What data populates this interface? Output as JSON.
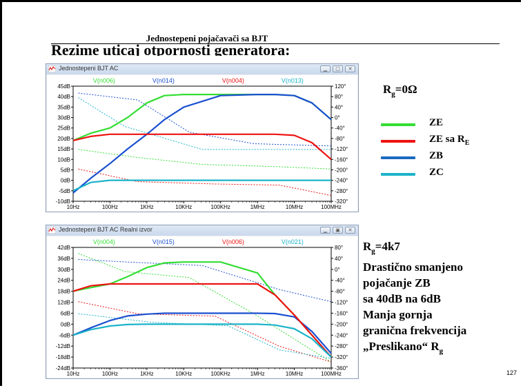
{
  "slide": {
    "title": "Jednostepeni pojačavači sa BJT",
    "heading": "Rezime uticaj otpornosti generatora:",
    "page_number": "127"
  },
  "colors": {
    "ze": "#33dd33",
    "ze_re": "#ee1111",
    "zb": "#1a4fd0",
    "zc": "#1bb3c9"
  },
  "legend": {
    "items": [
      {
        "label": "ZE",
        "color": "#33dd33"
      },
      {
        "label": "ZE sa R",
        "sub": "E",
        "color": "#ee1111"
      },
      {
        "label": "ZB",
        "color": "#1a6ac0"
      },
      {
        "label": "ZC",
        "color": "#1bb3c9"
      }
    ]
  },
  "top_label": {
    "main": "R",
    "sub": "g",
    "rest": "=0Ω"
  },
  "bottom_note": {
    "rg_main": "R",
    "rg_sub": "g",
    "rg_rest": "=4k7",
    "line2": "Drastično smanjeno",
    "line3": "pojačanje ZB",
    "line4": "sa 40dB na 6dB",
    "line5": "Manja gornja",
    "line6": "granična frekvencija",
    "line7_main": "„Preslikano“ R",
    "line7_sub": "g"
  },
  "windows": [
    {
      "title": "Jednostepeni BJT AC",
      "traces": [
        "V(n006)",
        "V(n014)",
        "V(n004)",
        "V(n013)"
      ],
      "trace_colors": [
        "#33dd33",
        "#1a4fd0",
        "#ee1111",
        "#1bb3c9"
      ],
      "y_left_ticks": [
        "45dB",
        "40dB",
        "35dB",
        "30dB",
        "25dB",
        "20dB",
        "15dB",
        "10dB",
        "5dB",
        "0dB",
        "-5dB",
        "-10dB"
      ],
      "y_right_ticks": [
        "120°",
        "80°",
        "40°",
        "0°",
        "-40°",
        "-80°",
        "-120°",
        "-160°",
        "-200°",
        "-240°",
        "-280°",
        "-320°"
      ],
      "x_ticks": [
        "10Hz",
        "100Hz",
        "1KHz",
        "10KHz",
        "100KHz",
        "1MHz",
        "10MHz",
        "100MHz"
      ]
    },
    {
      "title": "Jednostepeni BJT AC Realni izvor",
      "traces": [
        "V(n004)",
        "V(n015)",
        "V(n006)",
        "V(n021)"
      ],
      "trace_colors": [
        "#33dd33",
        "#1a4fd0",
        "#ee1111",
        "#1bb3c9"
      ],
      "y_left_ticks": [
        "42dB",
        "36dB",
        "30dB",
        "24dB",
        "18dB",
        "12dB",
        "6dB",
        "0dB",
        "-6dB",
        "-12dB",
        "-18dB",
        "-24dB"
      ],
      "y_right_ticks": [
        "80°",
        "40°",
        "0°",
        "-40°",
        "-80°",
        "-120°",
        "-160°",
        "-200°",
        "-240°",
        "-280°",
        "-320°",
        "-360°"
      ],
      "x_ticks": [
        "10Hz",
        "100Hz",
        "1KHz",
        "10KHz",
        "100KHz",
        "1MHz",
        "10MHz",
        "100MHz"
      ]
    }
  ],
  "chart_data": [
    {
      "type": "line",
      "title": "Jednostepeni BJT AC",
      "x_scale": "log",
      "x": [
        10,
        30,
        100,
        300,
        1000,
        3000,
        10000,
        100000,
        1000000,
        3000000,
        10000000,
        30000000,
        100000000
      ],
      "ylim": [
        -10,
        45
      ],
      "y2lim": [
        -320,
        120
      ],
      "series": [
        {
          "name": "V(n006)",
          "values": [
            19,
            22.5,
            25,
            30,
            37,
            40.5,
            41,
            41,
            41,
            41,
            40.5,
            37,
            29
          ]
        },
        {
          "name": "V(n014)",
          "values": [
            -6,
            1,
            8,
            15,
            22,
            29,
            35,
            40.5,
            41,
            41,
            40.5,
            37,
            29
          ]
        },
        {
          "name": "V(n004)",
          "values": [
            19,
            21,
            22,
            22,
            22,
            22,
            22,
            22,
            22,
            22,
            21.5,
            18,
            10
          ]
        },
        {
          "name": "V(n013)",
          "values": [
            -5,
            -1,
            0,
            0,
            0,
            0,
            0,
            0,
            0,
            0,
            0,
            0,
            0
          ]
        }
      ]
    },
    {
      "type": "line",
      "title": "Jednostepeni BJT AC Realni izvor",
      "x_scale": "log",
      "x": [
        10,
        30,
        100,
        300,
        1000,
        3000,
        10000,
        100000,
        1000000,
        3000000,
        10000000,
        30000000,
        100000000
      ],
      "ylim": [
        -24,
        42
      ],
      "y2lim": [
        -360,
        80
      ],
      "series": [
        {
          "name": "V(n004)",
          "values": [
            18,
            20,
            22,
            26,
            31,
            33.5,
            34,
            34,
            28,
            16,
            5,
            -6,
            -18
          ]
        },
        {
          "name": "V(n015)",
          "values": [
            -6,
            -2,
            2,
            4.5,
            5.5,
            6,
            6,
            6,
            6,
            5.8,
            4,
            -4,
            -16
          ]
        },
        {
          "name": "V(n006)",
          "values": [
            18,
            21,
            22,
            22,
            22,
            22,
            22,
            22,
            22,
            16,
            5,
            -6,
            -18
          ]
        },
        {
          "name": "V(n021)",
          "values": [
            -6,
            -3,
            -1,
            -0.2,
            0,
            0,
            0,
            0,
            0,
            -0.5,
            -2.5,
            -8,
            -18
          ]
        }
      ]
    }
  ]
}
